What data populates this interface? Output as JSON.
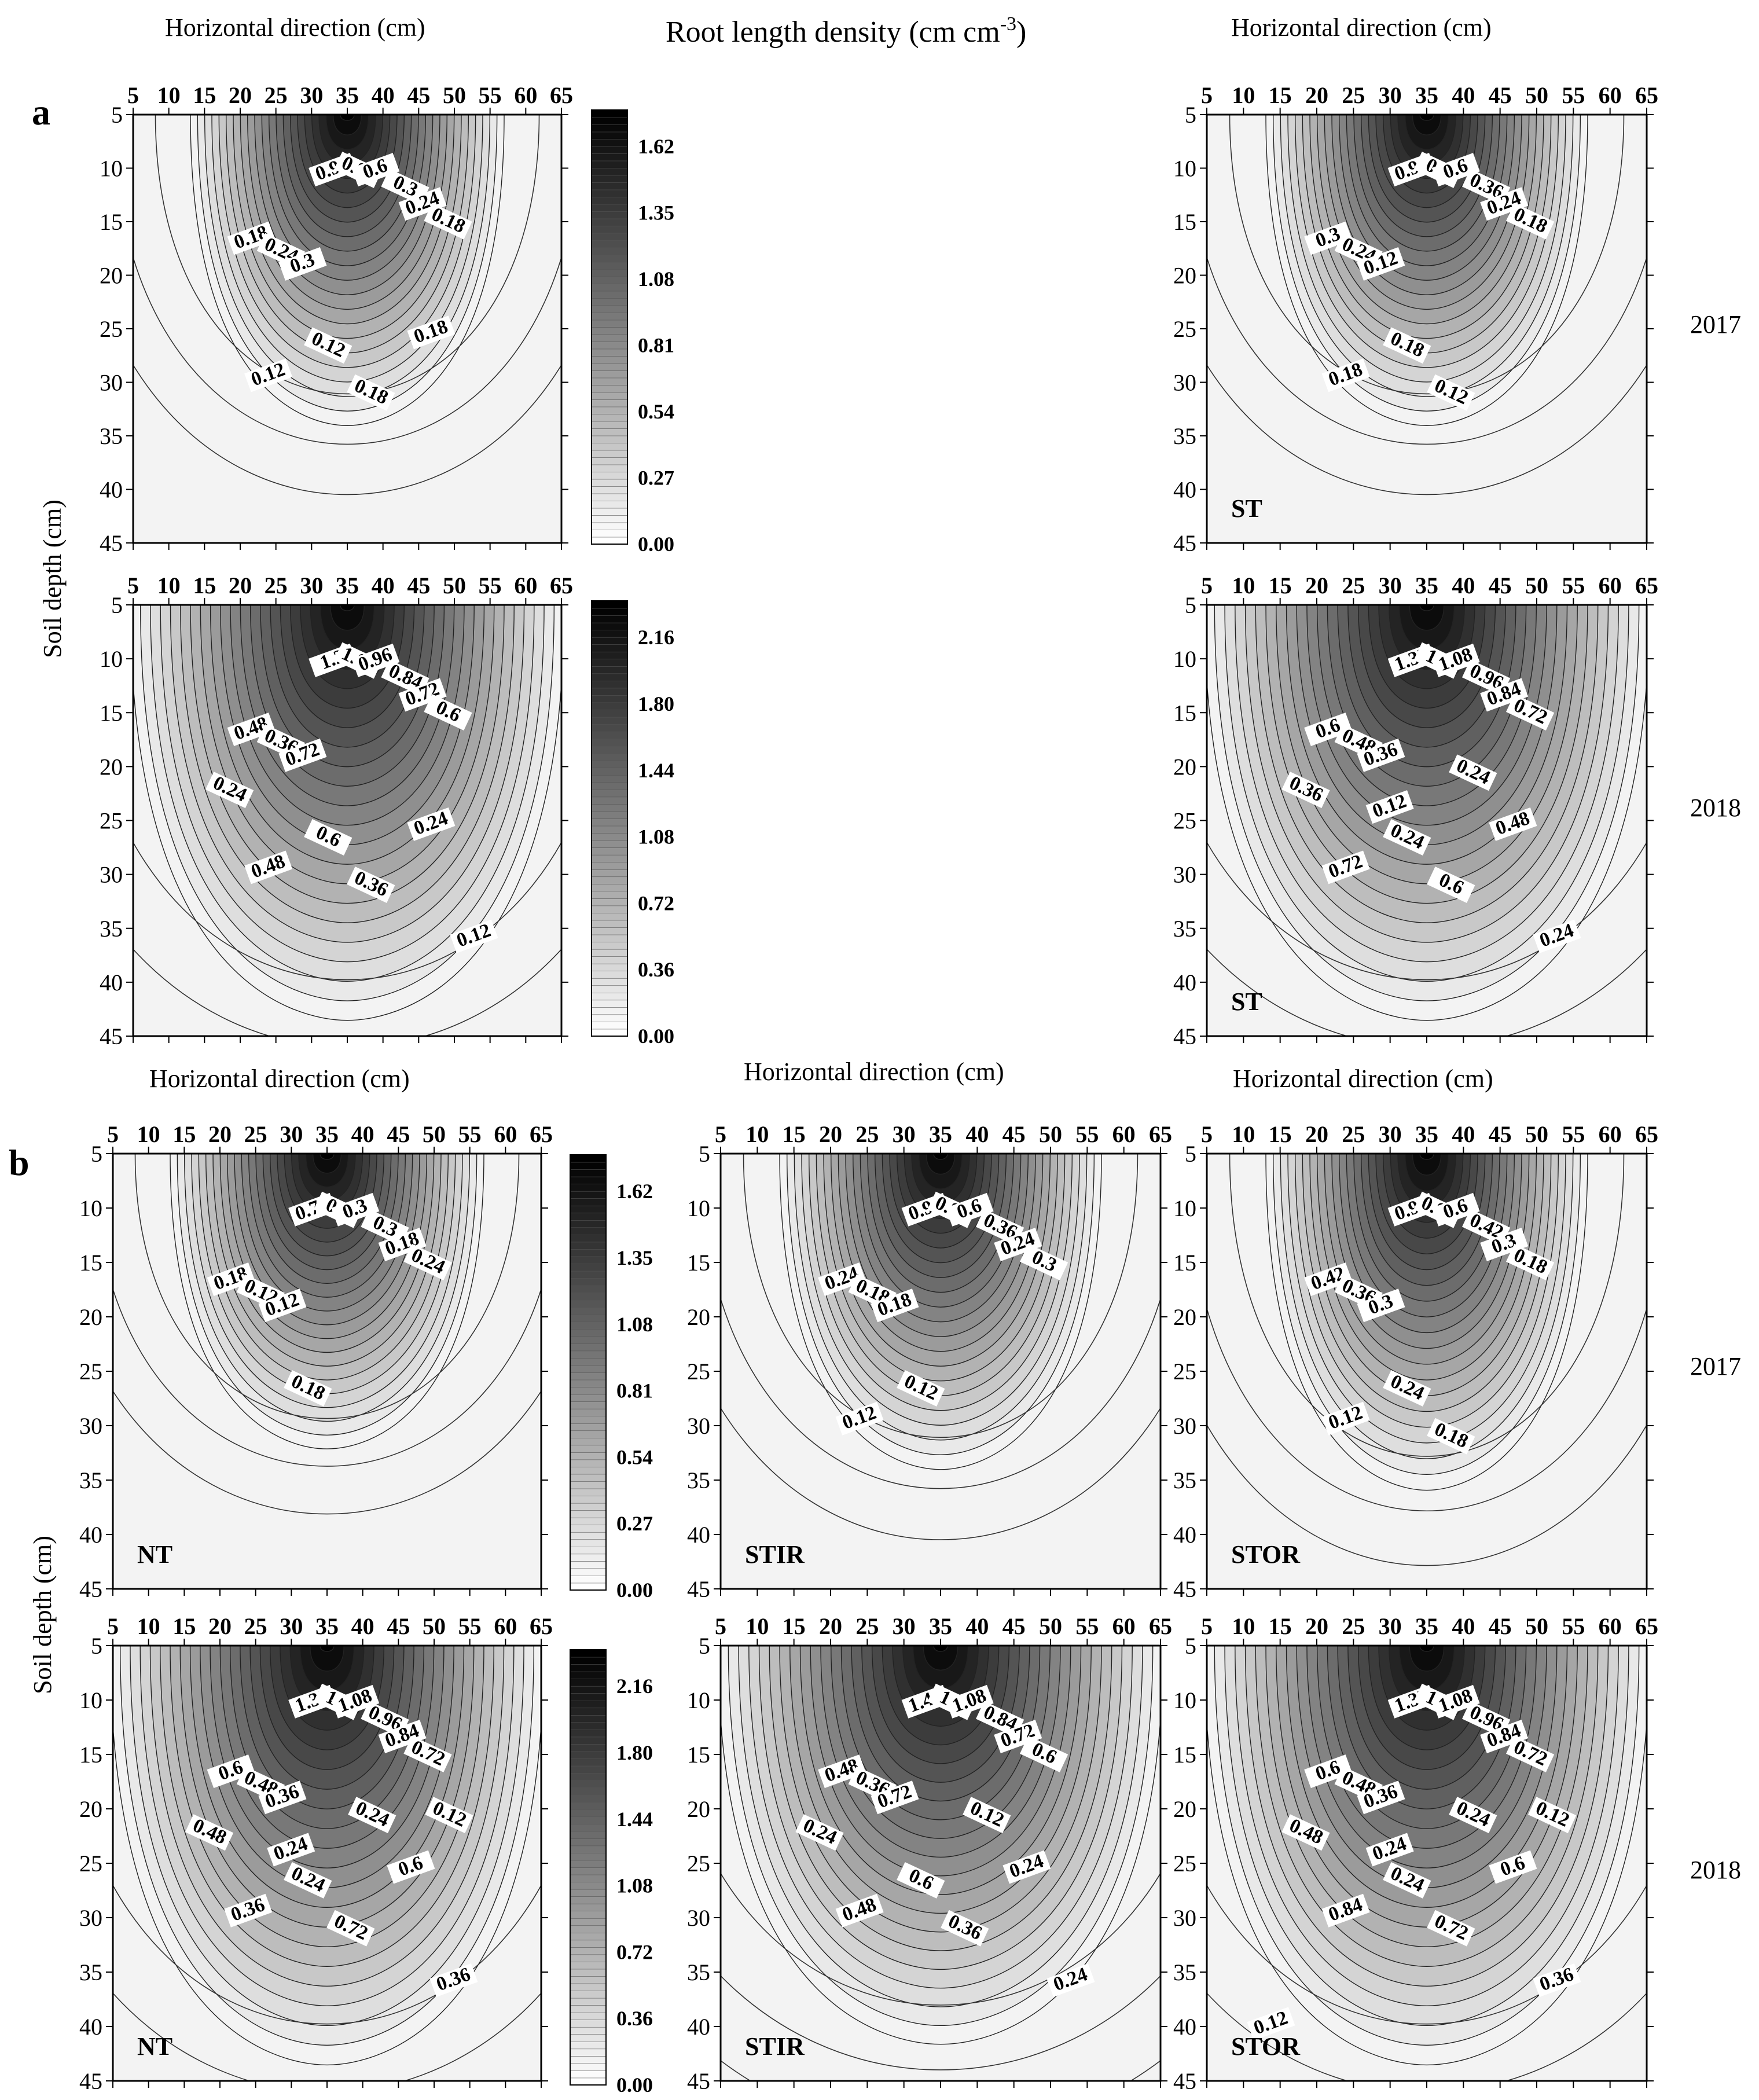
{
  "main_title": "Root length density (cm cm",
  "main_title_sup": "-3",
  "main_title_end": ")",
  "horizontal_axis_title": "Horizontal direction (cm)",
  "vertical_axis_title": "Soil depth (cm)",
  "section_labels": {
    "a": "a",
    "b": "b"
  },
  "years": [
    "2017",
    "2018"
  ],
  "colors": {
    "background": "#ffffff",
    "line": "#000000",
    "fill_light": "#f3f3f3",
    "fill_dark": "#000000"
  },
  "chart_data": [
    {
      "type": "heatmap",
      "id": "a-2017-left",
      "label": "",
      "x_ticks": [
        5,
        10,
        15,
        20,
        25,
        30,
        35,
        40,
        45,
        50,
        55,
        60,
        65
      ],
      "y_ticks": [
        5,
        10,
        15,
        20,
        25,
        30,
        35,
        40,
        45
      ],
      "xlim": [
        5,
        65
      ],
      "ylim": [
        5,
        45
      ],
      "peak_x": 35,
      "spread": 10,
      "depth_scale": 30,
      "contour_labels": [
        "0.94",
        "0.82",
        "0.6",
        "0.3",
        "0.24",
        "0.18",
        "0.18",
        "0.24",
        "0.3",
        "0.12",
        "0.12",
        "0.18",
        "0.18"
      ]
    },
    {
      "type": "heatmap",
      "id": "a-2017-ST",
      "label": "ST",
      "x_ticks": [
        5,
        10,
        15,
        20,
        25,
        30,
        35,
        40,
        45,
        50,
        55,
        60,
        65
      ],
      "y_ticks": [
        5,
        10,
        15,
        20,
        25,
        30,
        35,
        40,
        45
      ],
      "xlim": [
        5,
        65
      ],
      "ylim": [
        5,
        45
      ],
      "peak_x": 35,
      "spread": 10,
      "depth_scale": 30,
      "contour_labels": [
        "0.94",
        "0.8",
        "0.6",
        "0.36",
        "0.24",
        "0.18",
        "0.3",
        "0.24",
        "0.12",
        "0.18",
        "0.18",
        "0.12"
      ]
    },
    {
      "type": "heatmap",
      "id": "a-2018-left",
      "label": "",
      "x_ticks": [
        5,
        10,
        15,
        20,
        25,
        30,
        35,
        40,
        45,
        50,
        55,
        60,
        65
      ],
      "y_ticks": [
        5,
        10,
        15,
        20,
        25,
        30,
        35,
        40,
        45
      ],
      "xlim": [
        5,
        65
      ],
      "ylim": [
        5,
        45
      ],
      "peak_x": 35,
      "spread": 14,
      "depth_scale": 40,
      "contour_labels": [
        "1.2",
        "1.08",
        "0.96",
        "0.84",
        "0.72",
        "0.6",
        "0.48",
        "0.36",
        "0.72",
        "0.6",
        "0.48",
        "0.36",
        "0.24",
        "0.24",
        "0.12"
      ]
    },
    {
      "type": "heatmap",
      "id": "a-2018-ST",
      "label": "ST",
      "x_ticks": [
        5,
        10,
        15,
        20,
        25,
        30,
        35,
        40,
        45,
        50,
        55,
        60,
        65
      ],
      "y_ticks": [
        5,
        10,
        15,
        20,
        25,
        30,
        35,
        40,
        45
      ],
      "xlim": [
        5,
        65
      ],
      "ylim": [
        5,
        45
      ],
      "peak_x": 35,
      "spread": 14,
      "depth_scale": 40,
      "contour_labels": [
        "1.32",
        "1.2",
        "1.08",
        "0.96",
        "0.84",
        "0.72",
        "0.6",
        "0.48",
        "0.36",
        "0.24",
        "0.72",
        "0.6",
        "0.48",
        "0.36",
        "0.24",
        "0.24",
        "0.12"
      ]
    },
    {
      "type": "heatmap",
      "id": "b-2017-NT",
      "label": "NT",
      "x_ticks": [
        5,
        10,
        15,
        20,
        25,
        30,
        35,
        40,
        45,
        50,
        55,
        60,
        65
      ],
      "y_ticks": [
        5,
        10,
        15,
        20,
        25,
        30,
        35,
        40,
        45
      ],
      "xlim": [
        5,
        65
      ],
      "ylim": [
        5,
        45
      ],
      "peak_x": 35,
      "spread": 10,
      "depth_scale": 28,
      "contour_labels": [
        "0.78",
        "0.6",
        "0.3",
        "0.3",
        "0.18",
        "0.24",
        "0.18",
        "0.12",
        "0.12",
        "0.18"
      ]
    },
    {
      "type": "heatmap",
      "id": "b-2017-STIR",
      "label": "STIR",
      "x_ticks": [
        5,
        10,
        15,
        20,
        25,
        30,
        35,
        40,
        45,
        50,
        55,
        60,
        65
      ],
      "y_ticks": [
        5,
        10,
        15,
        20,
        25,
        30,
        35,
        40,
        45
      ],
      "xlim": [
        5,
        65
      ],
      "ylim": [
        5,
        45
      ],
      "peak_x": 35,
      "spread": 10,
      "depth_scale": 30,
      "contour_labels": [
        "0.94",
        "0.82",
        "0.6",
        "0.36",
        "0.24",
        "0.3",
        "0.24",
        "0.18",
        "0.18",
        "0.12",
        "0.12"
      ]
    },
    {
      "type": "heatmap",
      "id": "b-2017-STOR",
      "label": "STOR",
      "x_ticks": [
        5,
        10,
        15,
        20,
        25,
        30,
        35,
        40,
        45,
        50,
        55,
        60,
        65
      ],
      "y_ticks": [
        5,
        10,
        15,
        20,
        25,
        30,
        35,
        40,
        45
      ],
      "xlim": [
        5,
        65
      ],
      "ylim": [
        5,
        45
      ],
      "peak_x": 35,
      "spread": 10,
      "depth_scale": 32,
      "contour_labels": [
        "0.96",
        "0.94",
        "0.6",
        "0.42",
        "0.3",
        "0.18",
        "0.42",
        "0.36",
        "0.3",
        "0.24",
        "0.12",
        "0.18"
      ]
    },
    {
      "type": "heatmap",
      "id": "b-2018-NT",
      "label": "NT",
      "x_ticks": [
        5,
        10,
        15,
        20,
        25,
        30,
        35,
        40,
        45,
        50,
        55,
        60,
        65
      ],
      "y_ticks": [
        5,
        10,
        15,
        20,
        25,
        30,
        35,
        40,
        45
      ],
      "xlim": [
        5,
        65
      ],
      "ylim": [
        5,
        45
      ],
      "peak_x": 35,
      "spread": 14,
      "depth_scale": 40,
      "contour_labels": [
        "1.32",
        "1.2",
        "1.08",
        "0.96",
        "0.84",
        "0.72",
        "0.6",
        "0.48",
        "0.36",
        "0.24",
        "0.36",
        "0.72",
        "0.6",
        "0.48",
        "0.36",
        "0.24",
        "0.24",
        "0.12"
      ]
    },
    {
      "type": "heatmap",
      "id": "b-2018-STIR",
      "label": "STIR",
      "x_ticks": [
        5,
        10,
        15,
        20,
        25,
        30,
        35,
        40,
        45,
        50,
        55,
        60,
        65
      ],
      "y_ticks": [
        5,
        10,
        15,
        20,
        25,
        30,
        35,
        40,
        45
      ],
      "xlim": [
        5,
        65
      ],
      "ylim": [
        5,
        45
      ],
      "peak_x": 35,
      "spread": 14,
      "depth_scale": 38,
      "contour_labels": [
        "1.44",
        "1.2",
        "1.08",
        "0.84",
        "0.72",
        "0.6",
        "0.48",
        "0.36",
        "0.72",
        "0.6",
        "0.48",
        "0.36",
        "0.24",
        "0.24",
        "0.24",
        "0.12"
      ]
    },
    {
      "type": "heatmap",
      "id": "b-2018-STOR",
      "label": "STOR",
      "x_ticks": [
        5,
        10,
        15,
        20,
        25,
        30,
        35,
        40,
        45,
        50,
        55,
        60,
        65
      ],
      "y_ticks": [
        5,
        10,
        15,
        20,
        25,
        30,
        35,
        40,
        45
      ],
      "xlim": [
        5,
        65
      ],
      "ylim": [
        5,
        45
      ],
      "peak_x": 35,
      "spread": 14,
      "depth_scale": 40,
      "contour_labels": [
        "1.32",
        "1.2",
        "1.08",
        "0.96",
        "0.84",
        "0.72",
        "0.6",
        "0.48",
        "0.36",
        "0.24",
        "0.84",
        "0.72",
        "0.6",
        "0.48",
        "0.36",
        "0.24",
        "0.24",
        "0.12",
        "0.12"
      ]
    }
  ],
  "colorbars": [
    {
      "id": "cb-a-2017",
      "ticks": [
        "0.00",
        "0.27",
        "0.54",
        "0.81",
        "1.08",
        "1.35",
        "1.62"
      ]
    },
    {
      "id": "cb-a-2018",
      "ticks": [
        "0.00",
        "0.36",
        "0.72",
        "1.08",
        "1.44",
        "1.80",
        "2.16"
      ]
    },
    {
      "id": "cb-b-2017",
      "ticks": [
        "0.00",
        "0.27",
        "0.54",
        "0.81",
        "1.08",
        "1.35",
        "1.62"
      ]
    },
    {
      "id": "cb-b-2018",
      "ticks": [
        "0.00",
        "0.36",
        "0.72",
        "1.08",
        "1.44",
        "1.80",
        "2.16"
      ]
    }
  ]
}
